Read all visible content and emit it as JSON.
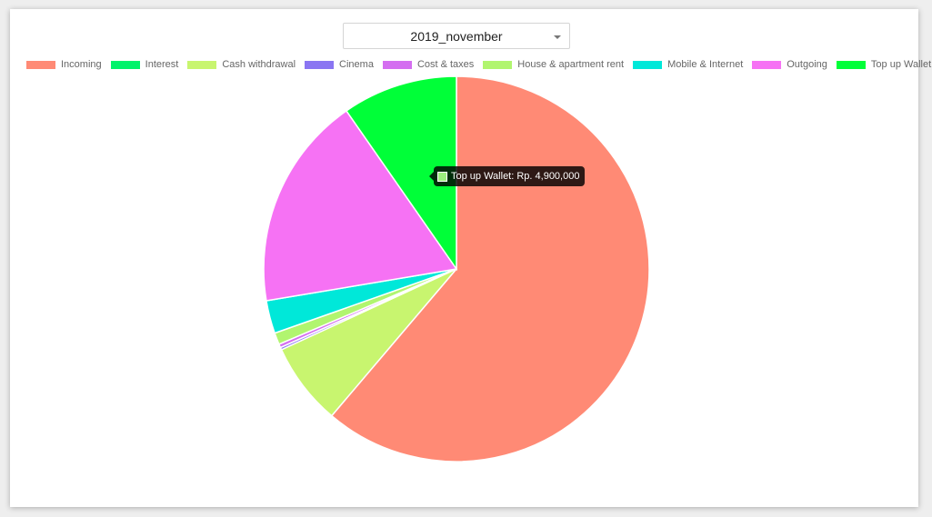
{
  "filter": {
    "selected": "2019_november"
  },
  "chart_data": {
    "type": "pie",
    "title": "",
    "legend_position": "top",
    "currency_prefix": "Rp.",
    "slices": [
      {
        "label": "Incoming",
        "value": 31000000,
        "color": "#ff8a75"
      },
      {
        "label": "Interest",
        "value": 0,
        "color": "#00f36a"
      },
      {
        "label": "Cash withdrawal",
        "value": 3500000,
        "color": "#c8f56f"
      },
      {
        "label": "Cinema",
        "value": 100000,
        "color": "#8a75f2"
      },
      {
        "label": "Cost & taxes",
        "value": 150000,
        "color": "#d46ef0"
      },
      {
        "label": "House & apartment rent",
        "value": 500000,
        "color": "#b1f56f"
      },
      {
        "label": "Mobile & Internet",
        "value": 1400000,
        "color": "#00e8d9"
      },
      {
        "label": "Outgoing",
        "value": 9100000,
        "color": "#f672f4"
      },
      {
        "label": "Top up Wallet",
        "value": 4900000,
        "color": "#00ff38"
      }
    ],
    "tooltip": {
      "swatch_color": "#9bf07e",
      "text": "Top up Wallet: Rp. 4,900,000"
    }
  }
}
